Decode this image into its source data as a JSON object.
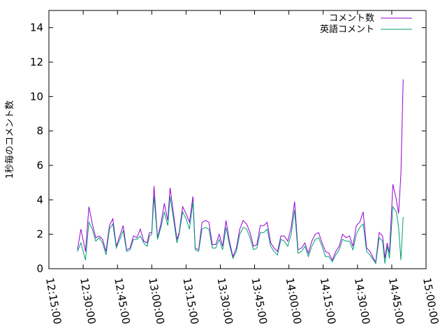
{
  "chart_data": {
    "type": "line",
    "title": "",
    "xlabel": "",
    "ylabel": "1秒毎のコメント数",
    "x_range": [
      "12:15:00",
      "15:00:00"
    ],
    "ylim": [
      0,
      15
    ],
    "x_ticks": [
      "12:15:00",
      "12:30:00",
      "12:45:00",
      "13:00:00",
      "13:15:00",
      "13:30:00",
      "13:45:00",
      "14:00:00",
      "14:15:00",
      "14:30:00",
      "14:45:00",
      "15:00:00"
    ],
    "y_ticks": [
      0,
      2,
      4,
      6,
      8,
      10,
      12,
      14
    ],
    "grid": false,
    "legend_position": "top-right",
    "series": [
      {
        "name": "コメント数",
        "color": "#9400d3",
        "points": [
          [
            "12:27:30",
            1.1
          ],
          [
            "12:29:00",
            2.3
          ],
          [
            "12:31:00",
            1.0
          ],
          [
            "12:32:30",
            3.6
          ],
          [
            "12:34:00",
            2.6
          ],
          [
            "12:35:30",
            1.8
          ],
          [
            "12:37:00",
            1.9
          ],
          [
            "12:38:30",
            1.7
          ],
          [
            "12:40:00",
            1.0
          ],
          [
            "12:41:30",
            2.5
          ],
          [
            "12:43:00",
            2.9
          ],
          [
            "12:44:30",
            1.3
          ],
          [
            "12:46:00",
            1.9
          ],
          [
            "12:47:30",
            2.5
          ],
          [
            "12:49:00",
            1.1
          ],
          [
            "12:50:30",
            1.2
          ],
          [
            "12:52:00",
            1.9
          ],
          [
            "12:53:30",
            1.8
          ],
          [
            "12:55:00",
            2.3
          ],
          [
            "12:56:30",
            1.6
          ],
          [
            "12:58:00",
            1.5
          ],
          [
            "12:59:00",
            2.1
          ],
          [
            "13:00:00",
            2.1
          ],
          [
            "13:01:00",
            4.8
          ],
          [
            "13:02:30",
            1.8
          ],
          [
            "13:04:00",
            2.6
          ],
          [
            "13:05:30",
            3.8
          ],
          [
            "13:07:00",
            2.8
          ],
          [
            "13:08:00",
            4.7
          ],
          [
            "13:09:30",
            3.2
          ],
          [
            "13:11:00",
            1.7
          ],
          [
            "13:12:00",
            2.1
          ],
          [
            "13:13:30",
            3.6
          ],
          [
            "13:15:00",
            3.2
          ],
          [
            "13:16:30",
            2.7
          ],
          [
            "13:18:00",
            4.2
          ],
          [
            "13:19:00",
            1.2
          ],
          [
            "13:20:30",
            1.1
          ],
          [
            "13:22:00",
            2.7
          ],
          [
            "13:23:30",
            2.8
          ],
          [
            "13:25:00",
            2.7
          ],
          [
            "13:26:30",
            1.4
          ],
          [
            "13:28:00",
            1.4
          ],
          [
            "13:29:30",
            2.0
          ],
          [
            "13:31:00",
            1.3
          ],
          [
            "13:32:30",
            2.8
          ],
          [
            "13:34:00",
            1.6
          ],
          [
            "13:35:30",
            0.7
          ],
          [
            "13:37:00",
            1.2
          ],
          [
            "13:38:30",
            2.3
          ],
          [
            "13:40:00",
            2.8
          ],
          [
            "13:41:30",
            2.6
          ],
          [
            "13:43:00",
            2.1
          ],
          [
            "13:44:30",
            1.3
          ],
          [
            "13:46:00",
            1.4
          ],
          [
            "13:47:30",
            2.5
          ],
          [
            "13:49:00",
            2.5
          ],
          [
            "13:50:30",
            2.7
          ],
          [
            "13:52:00",
            1.5
          ],
          [
            "13:53:30",
            1.2
          ],
          [
            "13:55:00",
            1.0
          ],
          [
            "13:56:30",
            1.9
          ],
          [
            "13:58:00",
            1.9
          ],
          [
            "13:59:30",
            1.6
          ],
          [
            "14:01:00",
            2.4
          ],
          [
            "14:02:30",
            3.9
          ],
          [
            "14:04:00",
            1.1
          ],
          [
            "14:05:30",
            1.2
          ],
          [
            "14:07:00",
            1.5
          ],
          [
            "14:08:30",
            0.9
          ],
          [
            "14:10:00",
            1.6
          ],
          [
            "14:11:30",
            2.0
          ],
          [
            "14:13:00",
            2.1
          ],
          [
            "14:14:30",
            1.5
          ],
          [
            "14:16:00",
            1.0
          ],
          [
            "14:17:30",
            0.9
          ],
          [
            "14:19:00",
            0.5
          ],
          [
            "14:20:30",
            1.0
          ],
          [
            "14:22:00",
            1.3
          ],
          [
            "14:23:30",
            2.0
          ],
          [
            "14:25:00",
            1.8
          ],
          [
            "14:26:30",
            1.9
          ],
          [
            "14:28:00",
            1.3
          ],
          [
            "14:29:30",
            2.5
          ],
          [
            "14:31:00",
            2.7
          ],
          [
            "14:32:30",
            3.3
          ],
          [
            "14:34:00",
            1.2
          ],
          [
            "14:35:30",
            1.0
          ],
          [
            "14:37:00",
            0.6
          ],
          [
            "14:38:00",
            0.4
          ],
          [
            "14:39:30",
            2.1
          ],
          [
            "14:41:00",
            1.9
          ],
          [
            "14:42:00",
            0.6
          ],
          [
            "14:43:00",
            1.5
          ],
          [
            "14:44:00",
            0.9
          ],
          [
            "14:45:30",
            4.9
          ],
          [
            "14:47:00",
            4.0
          ],
          [
            "14:48:00",
            3.2
          ],
          [
            "14:49:00",
            5.5
          ],
          [
            "14:50:00",
            11.0
          ]
        ]
      },
      {
        "name": "英語コメント",
        "color": "#009e73",
        "points": [
          [
            "12:27:30",
            1.0
          ],
          [
            "12:29:00",
            1.5
          ],
          [
            "12:31:00",
            0.5
          ],
          [
            "12:32:30",
            2.7
          ],
          [
            "12:34:00",
            2.3
          ],
          [
            "12:35:30",
            1.6
          ],
          [
            "12:37:00",
            1.8
          ],
          [
            "12:38:30",
            1.5
          ],
          [
            "12:40:00",
            0.8
          ],
          [
            "12:41:30",
            2.3
          ],
          [
            "12:43:00",
            2.6
          ],
          [
            "12:44:30",
            1.2
          ],
          [
            "12:46:00",
            1.7
          ],
          [
            "12:47:30",
            2.2
          ],
          [
            "12:49:00",
            1.0
          ],
          [
            "12:50:30",
            1.1
          ],
          [
            "12:52:00",
            1.7
          ],
          [
            "12:53:30",
            1.7
          ],
          [
            "12:55:00",
            1.9
          ],
          [
            "12:56:30",
            1.5
          ],
          [
            "12:58:00",
            1.3
          ],
          [
            "12:59:00",
            1.9
          ],
          [
            "13:00:00",
            2.0
          ],
          [
            "13:01:00",
            4.2
          ],
          [
            "13:02:30",
            1.7
          ],
          [
            "13:04:00",
            2.4
          ],
          [
            "13:05:30",
            3.3
          ],
          [
            "13:07:00",
            2.5
          ],
          [
            "13:08:00",
            4.2
          ],
          [
            "13:09:30",
            2.9
          ],
          [
            "13:11:00",
            1.5
          ],
          [
            "13:12:00",
            2.0
          ],
          [
            "13:13:30",
            3.3
          ],
          [
            "13:15:00",
            2.9
          ],
          [
            "13:16:30",
            2.3
          ],
          [
            "13:18:00",
            3.9
          ],
          [
            "13:19:00",
            1.1
          ],
          [
            "13:20:30",
            1.0
          ],
          [
            "13:22:00",
            2.3
          ],
          [
            "13:23:30",
            2.4
          ],
          [
            "13:25:00",
            2.3
          ],
          [
            "13:26:30",
            1.2
          ],
          [
            "13:28:00",
            1.2
          ],
          [
            "13:29:30",
            1.7
          ],
          [
            "13:31:00",
            1.1
          ],
          [
            "13:32:30",
            2.4
          ],
          [
            "13:34:00",
            1.4
          ],
          [
            "13:35:30",
            0.6
          ],
          [
            "13:37:00",
            1.0
          ],
          [
            "13:38:30",
            2.0
          ],
          [
            "13:40:00",
            2.4
          ],
          [
            "13:41:30",
            2.3
          ],
          [
            "13:43:00",
            1.8
          ],
          [
            "13:44:30",
            1.1
          ],
          [
            "13:46:00",
            1.2
          ],
          [
            "13:47:30",
            2.1
          ],
          [
            "13:49:00",
            2.1
          ],
          [
            "13:50:30",
            2.3
          ],
          [
            "13:52:00",
            1.3
          ],
          [
            "13:53:30",
            1.0
          ],
          [
            "13:55:00",
            0.8
          ],
          [
            "13:56:30",
            1.7
          ],
          [
            "13:58:00",
            1.6
          ],
          [
            "13:59:30",
            1.3
          ],
          [
            "14:01:00",
            2.0
          ],
          [
            "14:02:30",
            3.4
          ],
          [
            "14:04:00",
            0.9
          ],
          [
            "14:05:30",
            1.0
          ],
          [
            "14:07:00",
            1.3
          ],
          [
            "14:08:30",
            0.7
          ],
          [
            "14:10:00",
            1.3
          ],
          [
            "14:11:30",
            1.7
          ],
          [
            "14:13:00",
            1.8
          ],
          [
            "14:14:30",
            1.3
          ],
          [
            "14:16:00",
            0.7
          ],
          [
            "14:17:30",
            0.7
          ],
          [
            "14:19:00",
            0.4
          ],
          [
            "14:20:30",
            0.8
          ],
          [
            "14:22:00",
            1.1
          ],
          [
            "14:23:30",
            1.7
          ],
          [
            "14:25:00",
            1.6
          ],
          [
            "14:26:30",
            1.6
          ],
          [
            "14:28:00",
            1.1
          ],
          [
            "14:29:30",
            2.0
          ],
          [
            "14:31:00",
            2.4
          ],
          [
            "14:32:30",
            2.6
          ],
          [
            "14:34:00",
            1.0
          ],
          [
            "14:35:30",
            0.8
          ],
          [
            "14:37:00",
            0.5
          ],
          [
            "14:38:00",
            0.3
          ],
          [
            "14:39:30",
            1.8
          ],
          [
            "14:41:00",
            1.6
          ],
          [
            "14:42:00",
            0.3
          ],
          [
            "14:43:00",
            1.3
          ],
          [
            "14:44:00",
            0.6
          ],
          [
            "14:45:30",
            3.6
          ],
          [
            "14:47:00",
            3.3
          ],
          [
            "14:48:00",
            2.4
          ],
          [
            "14:49:00",
            0.5
          ],
          [
            "14:50:00",
            3.0
          ]
        ]
      }
    ]
  }
}
